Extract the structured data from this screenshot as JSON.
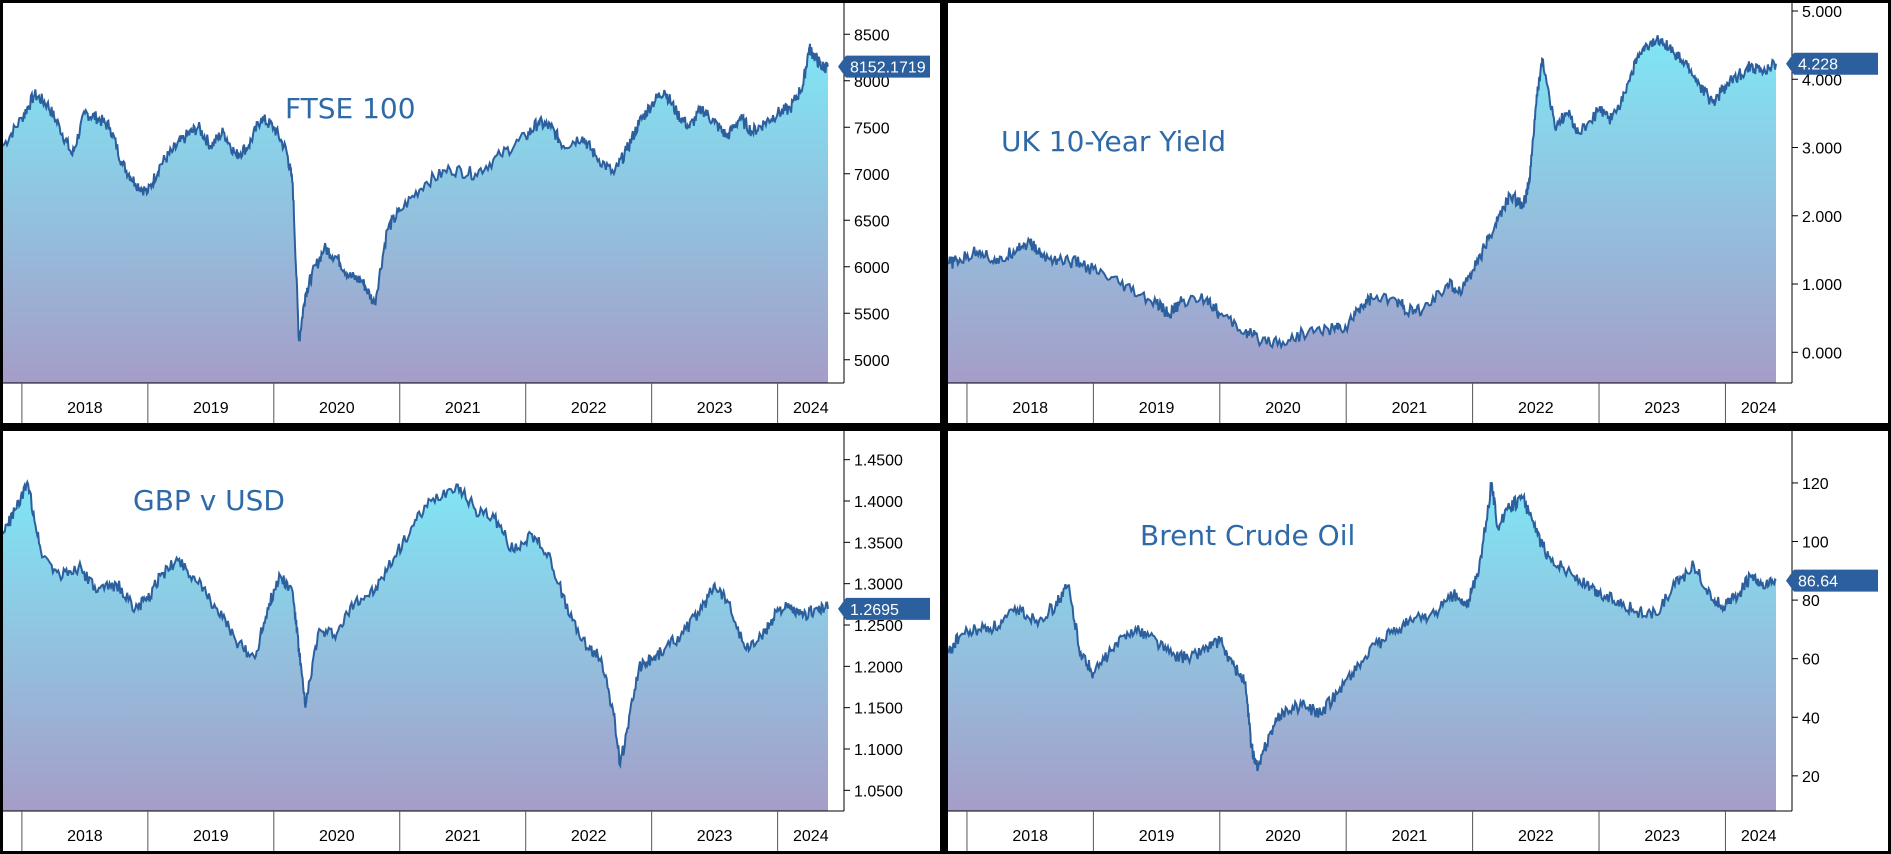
{
  "colors": {
    "line": "#2b5f9e",
    "fill_top": "#7fe6f5",
    "fill_bottom": "#a59dc8",
    "title": "#2e6aa8",
    "badge": "#2b5f9e",
    "axis_text": "#000000"
  },
  "chart_data": [
    {
      "type": "area",
      "title": "FTSE 100",
      "x_range": [
        2017.85,
        2024.4
      ],
      "ylim": [
        4750,
        8750
      ],
      "yticks": [
        "5000",
        "5500",
        "6000",
        "6500",
        "7000",
        "7500",
        "8000",
        "8500"
      ],
      "year_labels": [
        "2018",
        "2019",
        "2020",
        "2021",
        "2022",
        "2023",
        "2024"
      ],
      "last_value_label": "8152.1719",
      "x": [
        2017.85,
        2018.0,
        2018.1,
        2018.2,
        2018.3,
        2018.4,
        2018.5,
        2018.6,
        2018.7,
        2018.8,
        2018.9,
        2019.0,
        2019.1,
        2019.2,
        2019.3,
        2019.4,
        2019.5,
        2019.6,
        2019.7,
        2019.8,
        2019.9,
        2020.0,
        2020.1,
        2020.15,
        2020.2,
        2020.25,
        2020.3,
        2020.4,
        2020.5,
        2020.6,
        2020.7,
        2020.8,
        2020.9,
        2021.0,
        2021.2,
        2021.4,
        2021.6,
        2021.8,
        2022.0,
        2022.1,
        2022.2,
        2022.3,
        2022.45,
        2022.55,
        2022.7,
        2022.8,
        2022.9,
        2023.0,
        2023.1,
        2023.2,
        2023.3,
        2023.4,
        2023.5,
        2023.6,
        2023.7,
        2023.8,
        2023.9,
        2024.0,
        2024.1,
        2024.2,
        2024.25,
        2024.3,
        2024.35,
        2024.4
      ],
      "values": [
        7300,
        7600,
        7850,
        7750,
        7500,
        7200,
        7650,
        7600,
        7500,
        7100,
        6900,
        6800,
        7100,
        7250,
        7400,
        7500,
        7300,
        7450,
        7200,
        7300,
        7600,
        7500,
        7250,
        6900,
        5200,
        5700,
        5900,
        6200,
        6100,
        5900,
        5850,
        5600,
        6400,
        6600,
        6900,
        7050,
        7000,
        7200,
        7400,
        7550,
        7500,
        7300,
        7400,
        7200,
        7000,
        7250,
        7550,
        7750,
        7900,
        7650,
        7500,
        7700,
        7550,
        7400,
        7600,
        7450,
        7550,
        7650,
        7700,
        7950,
        8350,
        8250,
        8150,
        8152
      ]
    },
    {
      "type": "area",
      "title": "UK 10-Year Yield",
      "x_range": [
        2017.85,
        2024.4
      ],
      "ylim": [
        -0.45,
        5.0
      ],
      "yticks": [
        "0.000",
        "1.000",
        "2.000",
        "3.000",
        "4.000",
        "5.000"
      ],
      "year_labels": [
        "2018",
        "2019",
        "2020",
        "2021",
        "2022",
        "2023",
        "2024"
      ],
      "last_value_label": "4.228",
      "x": [
        2017.85,
        2017.95,
        2018.1,
        2018.25,
        2018.4,
        2018.5,
        2018.6,
        2018.75,
        2018.9,
        2019.1,
        2019.3,
        2019.5,
        2019.6,
        2019.7,
        2019.9,
        2020.0,
        2020.2,
        2020.3,
        2020.5,
        2020.7,
        2020.9,
        2021.0,
        2021.1,
        2021.2,
        2021.4,
        2021.5,
        2021.6,
        2021.8,
        2021.9,
        2022.0,
        2022.1,
        2022.2,
        2022.3,
        2022.4,
        2022.45,
        2022.5,
        2022.55,
        2022.65,
        2022.75,
        2022.85,
        2023.0,
        2023.1,
        2023.2,
        2023.3,
        2023.4,
        2023.5,
        2023.6,
        2023.7,
        2023.8,
        2023.9,
        2024.0,
        2024.1,
        2024.2,
        2024.3,
        2024.4
      ],
      "values": [
        1.3,
        1.35,
        1.5,
        1.3,
        1.55,
        1.6,
        1.4,
        1.35,
        1.3,
        1.1,
        0.9,
        0.7,
        0.55,
        0.75,
        0.8,
        0.55,
        0.3,
        0.2,
        0.15,
        0.3,
        0.35,
        0.35,
        0.65,
        0.8,
        0.75,
        0.6,
        0.6,
        1.0,
        0.9,
        1.2,
        1.55,
        1.95,
        2.3,
        2.15,
        2.5,
        3.6,
        4.3,
        3.3,
        3.5,
        3.2,
        3.55,
        3.4,
        3.8,
        4.3,
        4.5,
        4.6,
        4.35,
        4.2,
        3.9,
        3.65,
        3.9,
        4.05,
        4.2,
        4.1,
        4.228
      ]
    },
    {
      "type": "area",
      "title": "GBP v USD",
      "x_range": [
        2017.85,
        2024.4
      ],
      "ylim": [
        1.025,
        1.475
      ],
      "yticks": [
        "1.0500",
        "1.1000",
        "1.1500",
        "1.2000",
        "1.2500",
        "1.3000",
        "1.3500",
        "1.4000",
        "1.4500"
      ],
      "year_labels": [
        "2018",
        "2019",
        "2020",
        "2021",
        "2022",
        "2023",
        "2024"
      ],
      "last_value_label": "1.2695",
      "x": [
        2017.85,
        2017.95,
        2018.05,
        2018.15,
        2018.3,
        2018.45,
        2018.6,
        2018.75,
        2018.9,
        2019.0,
        2019.1,
        2019.25,
        2019.4,
        2019.55,
        2019.7,
        2019.85,
        2019.95,
        2020.05,
        2020.15,
        2020.2,
        2020.25,
        2020.35,
        2020.5,
        2020.65,
        2020.8,
        2020.95,
        2021.1,
        2021.25,
        2021.45,
        2021.6,
        2021.75,
        2021.9,
        2022.05,
        2022.2,
        2022.35,
        2022.5,
        2022.6,
        2022.7,
        2022.75,
        2022.8,
        2022.9,
        2023.0,
        2023.1,
        2023.25,
        2023.4,
        2023.5,
        2023.6,
        2023.75,
        2023.9,
        2024.0,
        2024.1,
        2024.2,
        2024.3,
        2024.4
      ],
      "values": [
        1.36,
        1.39,
        1.42,
        1.34,
        1.31,
        1.32,
        1.29,
        1.3,
        1.27,
        1.28,
        1.31,
        1.33,
        1.3,
        1.27,
        1.23,
        1.21,
        1.27,
        1.31,
        1.29,
        1.22,
        1.15,
        1.24,
        1.24,
        1.28,
        1.29,
        1.33,
        1.37,
        1.4,
        1.42,
        1.39,
        1.38,
        1.34,
        1.36,
        1.33,
        1.26,
        1.22,
        1.21,
        1.14,
        1.08,
        1.12,
        1.2,
        1.21,
        1.22,
        1.24,
        1.27,
        1.3,
        1.28,
        1.22,
        1.24,
        1.27,
        1.27,
        1.26,
        1.27,
        1.2695
      ]
    },
    {
      "type": "area",
      "title": "Brent Crude Oil",
      "x_range": [
        2017.85,
        2024.4
      ],
      "ylim": [
        8,
        135
      ],
      "yticks": [
        "20",
        "40",
        "60",
        "80",
        "100",
        "120"
      ],
      "year_labels": [
        "2018",
        "2019",
        "2020",
        "2021",
        "2022",
        "2023",
        "2024"
      ],
      "last_value_label": "86.64",
      "x": [
        2017.85,
        2017.95,
        2018.1,
        2018.25,
        2018.4,
        2018.55,
        2018.7,
        2018.8,
        2018.9,
        2019.0,
        2019.15,
        2019.3,
        2019.45,
        2019.6,
        2019.75,
        2019.9,
        2020.0,
        2020.1,
        2020.2,
        2020.25,
        2020.3,
        2020.4,
        2020.5,
        2020.65,
        2020.8,
        2020.95,
        2021.1,
        2021.25,
        2021.4,
        2021.55,
        2021.7,
        2021.85,
        2021.95,
        2022.05,
        2022.15,
        2022.2,
        2022.3,
        2022.4,
        2022.5,
        2022.6,
        2022.75,
        2022.9,
        2023.0,
        2023.15,
        2023.3,
        2023.45,
        2023.6,
        2023.75,
        2023.9,
        2024.0,
        2024.1,
        2024.2,
        2024.3,
        2024.4
      ],
      "values": [
        62,
        68,
        70,
        71,
        77,
        73,
        78,
        85,
        62,
        55,
        63,
        70,
        68,
        62,
        60,
        64,
        66,
        58,
        52,
        30,
        22,
        35,
        42,
        44,
        41,
        50,
        58,
        65,
        70,
        74,
        75,
        82,
        78,
        90,
        120,
        105,
        112,
        115,
        103,
        95,
        90,
        85,
        82,
        80,
        76,
        75,
        85,
        92,
        80,
        78,
        82,
        88,
        84,
        86.64
      ]
    }
  ]
}
